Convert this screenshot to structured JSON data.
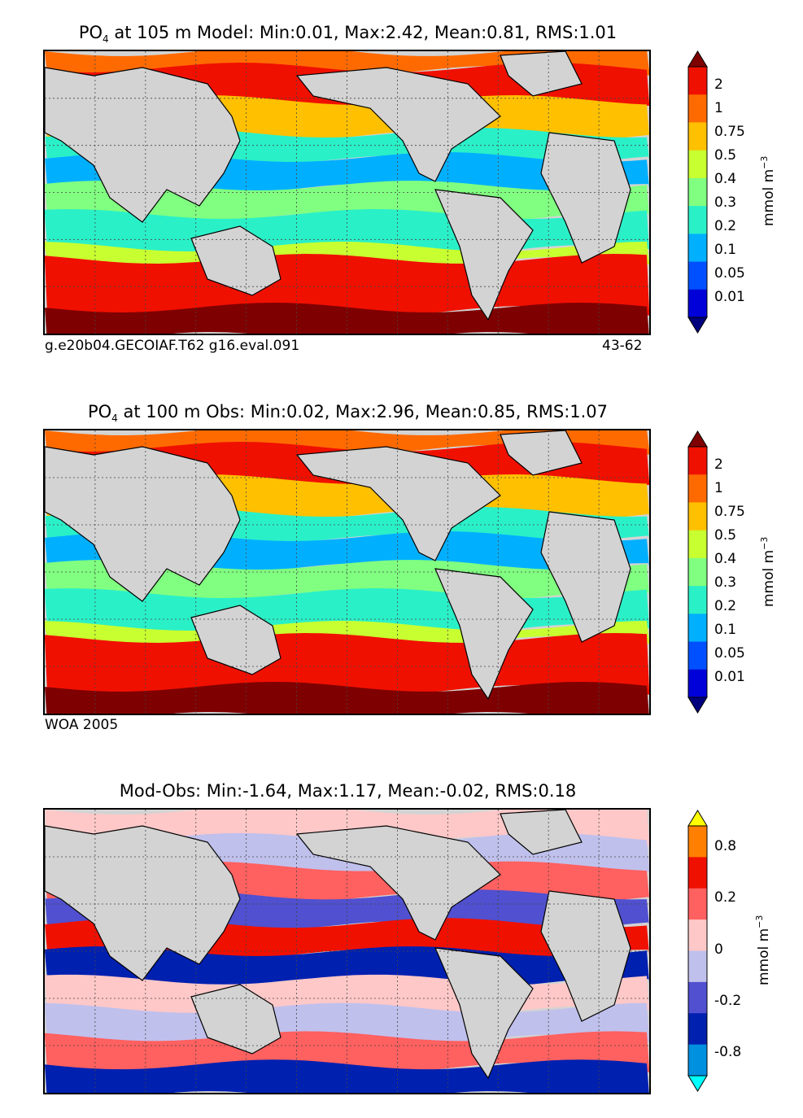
{
  "panels": [
    {
      "id": "model",
      "title_species": "PO",
      "title_sub": "4",
      "title_rest": " at 105 m Model: Min:0.01, Max:2.42, Mean:0.81, RMS:1.01",
      "footer_left": "g.e20b04.GECOIAF.T62 g16.eval.091",
      "footer_right": "43-62",
      "colorbar_ticks": [
        "2",
        "1",
        "0.75",
        "0.5",
        "0.4",
        "0.3",
        "0.2",
        "0.1",
        "0.05",
        "0.01"
      ],
      "unit": "mmol m",
      "unit_exp": "−3"
    },
    {
      "id": "obs",
      "title_species": "PO",
      "title_sub": "4",
      "title_rest": " at 100 m Obs: Min:0.02, Max:2.96, Mean:0.85, RMS:1.07",
      "footer_left": "WOA 2005",
      "footer_right": "",
      "colorbar_ticks": [
        "2",
        "1",
        "0.75",
        "0.5",
        "0.4",
        "0.3",
        "0.2",
        "0.1",
        "0.05",
        "0.01"
      ],
      "unit": "mmol m",
      "unit_exp": "−3"
    },
    {
      "id": "diff",
      "title_full": "Mod-Obs: Min:-1.64, Max:1.17, Mean:-0.02, RMS:0.18",
      "colorbar_ticks": [
        "0.8",
        "0.2",
        "0",
        "-0.2",
        "-0.8"
      ],
      "unit": "mmol m",
      "unit_exp": "−3"
    }
  ],
  "chart_data": [
    {
      "type": "heatmap",
      "title": "PO4 at 105 m Model: Min:0.01, Max:2.42, Mean:0.81, RMS:1.01",
      "stats": {
        "min": 0.01,
        "max": 2.42,
        "mean": 0.81,
        "rms": 1.01
      },
      "colorbar_levels": [
        0.01,
        0.05,
        0.1,
        0.2,
        0.3,
        0.4,
        0.5,
        0.75,
        1,
        2
      ],
      "colorbar_colors": [
        "#00007f",
        "#0000d8",
        "#0050ff",
        "#00b0ff",
        "#2af0c8",
        "#80ff80",
        "#c8ff30",
        "#ffc000",
        "#ff6a00",
        "#f01000",
        "#7f0000"
      ],
      "colorbar_extend": "both",
      "grid": true,
      "unit": "mmol m^-3"
    },
    {
      "type": "heatmap",
      "title": "PO4 at 100 m Obs: Min:0.02, Max:2.96, Mean:0.85, RMS:1.07",
      "stats": {
        "min": 0.02,
        "max": 2.96,
        "mean": 0.85,
        "rms": 1.07
      },
      "colorbar_levels": [
        0.01,
        0.05,
        0.1,
        0.2,
        0.3,
        0.4,
        0.5,
        0.75,
        1,
        2
      ],
      "colorbar_colors": [
        "#00007f",
        "#0000d8",
        "#0050ff",
        "#00b0ff",
        "#2af0c8",
        "#80ff80",
        "#c8ff30",
        "#ffc000",
        "#ff6a00",
        "#f01000",
        "#7f0000"
      ],
      "colorbar_extend": "both",
      "grid": true,
      "unit": "mmol m^-3"
    },
    {
      "type": "heatmap",
      "title": "Mod-Obs: Min:-1.64, Max:1.17, Mean:-0.02, RMS:0.18",
      "stats": {
        "min": -1.64,
        "max": 1.17,
        "mean": -0.02,
        "rms": 0.18
      },
      "colorbar_levels": [
        -0.8,
        -0.2,
        0,
        0.2,
        0.8
      ],
      "colorbar_colors": [
        "#00ffff",
        "#0090e0",
        "#0020b0",
        "#5050d0",
        "#c0c0ec",
        "#ffc8c8",
        "#ff6060",
        "#f01000",
        "#ff8000",
        "#ffff00"
      ],
      "colorbar_extend": "both",
      "grid": true,
      "unit": "mmol m^-3"
    }
  ]
}
